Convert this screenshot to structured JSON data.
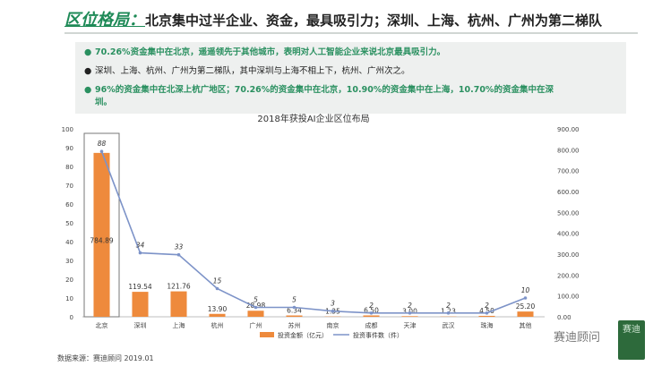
{
  "header": {
    "title_key": "区位格局：",
    "title_rest": "北京集中过半企业、资金，最具吸引力；深圳、上海、杭州、广州为第二梯队"
  },
  "bullets": [
    {
      "text": "70.26%资金集中在北京，遥遥领先于其他城市，表明对人工智能企业来说北京最具吸引力。",
      "style": "green"
    },
    {
      "text": "深圳、上海、杭州、广州为第二梯队，其中深圳与上海不相上下，杭州、广州次之。",
      "style": "black"
    },
    {
      "text": "96%的资金集中在北深上杭广地区；70.26%的资金集中在北京，10.90%的资金集中在上海，10.70%的资金集中在深",
      "style": "green"
    },
    {
      "text": "圳。",
      "style": "green"
    }
  ],
  "chart_data": {
    "type": "bar",
    "title": "2018年获投AI企业区位布局",
    "categories": [
      "北京",
      "深圳",
      "上海",
      "杭州",
      "广州",
      "苏州",
      "南京",
      "成都",
      "天津",
      "武汉",
      "珠海",
      "其他"
    ],
    "series": [
      {
        "name": "投资金额（亿元）",
        "type": "bar",
        "axis": "right",
        "color": "#ee8a3c",
        "values": [
          784.89,
          119.54,
          121.76,
          13.9,
          28.98,
          6.34,
          1.35,
          6.5,
          3.0,
          1.23,
          4.5,
          25.2
        ],
        "labels": [
          "784.89",
          "119.54",
          "121.76",
          "13.90",
          "28.98",
          "6.34",
          "1.35",
          "6.50",
          "3.00",
          "1.23",
          "4.50",
          "25.20"
        ]
      },
      {
        "name": "投资事件数（件）",
        "type": "line",
        "axis": "left",
        "color": "#7d93c8",
        "values": [
          88,
          34,
          33,
          15,
          5,
          5,
          3,
          2,
          2,
          2,
          2,
          10
        ],
        "labels": [
          "88",
          "34",
          "33",
          "15",
          "5",
          "5",
          "3",
          "2",
          "2",
          "2",
          "2",
          "10"
        ]
      }
    ],
    "left_axis": {
      "min": 0,
      "max": 100,
      "ticks": [
        "0",
        "10",
        "20",
        "30",
        "40",
        "50",
        "60",
        "70",
        "80",
        "90",
        "100"
      ]
    },
    "right_axis": {
      "min": 0,
      "max": 900,
      "ticks": [
        "0.00",
        "100.00",
        "200.00",
        "300.00",
        "400.00",
        "500.00",
        "600.00",
        "700.00",
        "800.00",
        "900.00"
      ]
    },
    "grid": false,
    "legend_position": "bottom",
    "highlight_category": "北京"
  },
  "footer": {
    "source": "数据来源：赛迪顾问 2019.01",
    "brand": "赛迪顾问",
    "brand_mark": "赛迪"
  }
}
